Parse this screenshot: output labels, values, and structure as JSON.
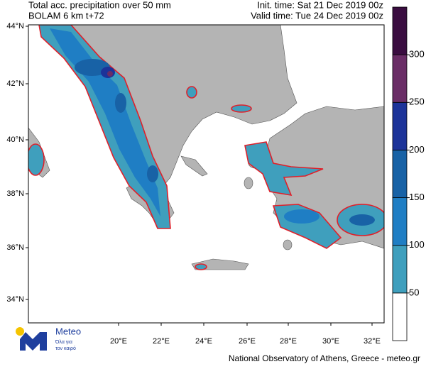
{
  "header": {
    "title": "Total acc. precipitation over 50 mm",
    "model": "BOLAM 6 km t+72",
    "init_time": "Init. time: Sat 21 Dec 2019 00z",
    "valid_time": "Valid time: Tue 24 Dec 2019 00z"
  },
  "map": {
    "lat_labels": [
      "44°N",
      "42°N",
      "40°N",
      "38°N",
      "36°N",
      "34°N"
    ],
    "lon_labels": [
      "20°E",
      "22°E",
      "24°E",
      "26°E",
      "28°E",
      "30°E",
      "32°E"
    ]
  },
  "colorbar": {
    "levels": [
      50,
      100,
      150,
      200,
      250,
      300
    ],
    "colors": [
      "#3f9fbd",
      "#1f7ec4",
      "#1862a6",
      "#1c3399",
      "#6a2d66",
      "#3a0d40"
    ]
  },
  "logo": {
    "name": "Meteo",
    "tagline_1": "Όλα για",
    "tagline_2": "τον καιρό"
  },
  "footer": "National Observatory of Athens, Greece - meteo.gr"
}
